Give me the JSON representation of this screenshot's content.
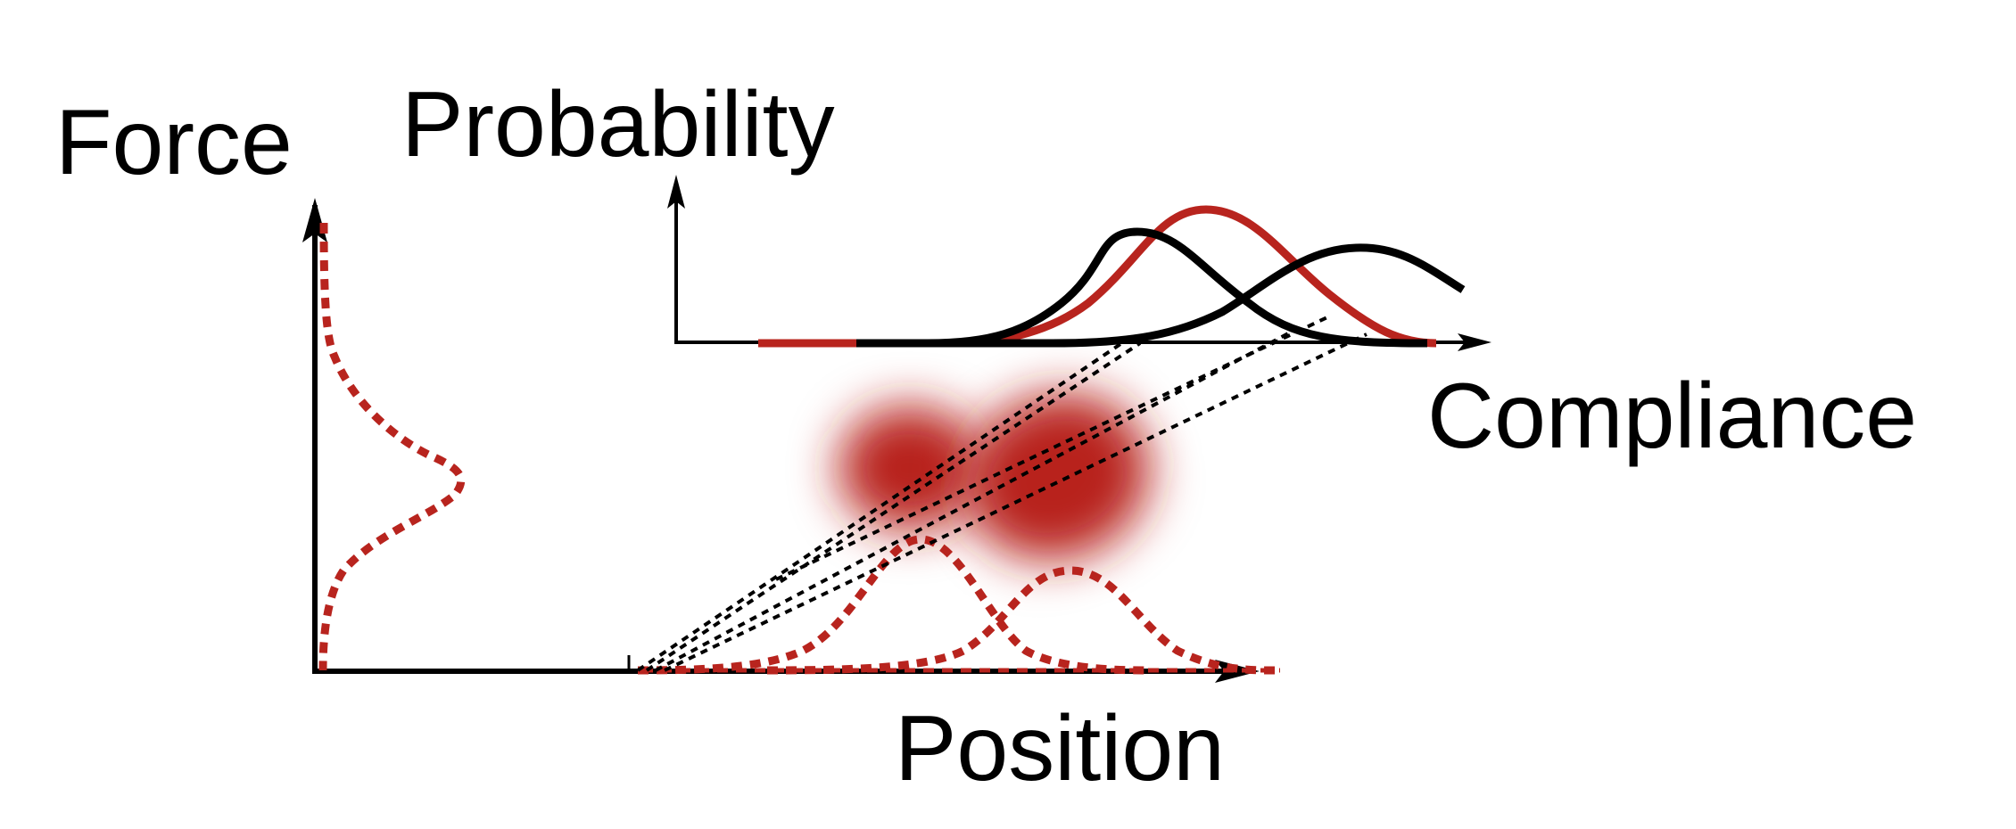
{
  "labels": {
    "force": "Force",
    "probability": "Probability",
    "compliance": "Compliance",
    "position": "Position"
  },
  "colors": {
    "accent_red": "#b8241e",
    "ink": "#000000",
    "background": "#ffffff"
  }
}
